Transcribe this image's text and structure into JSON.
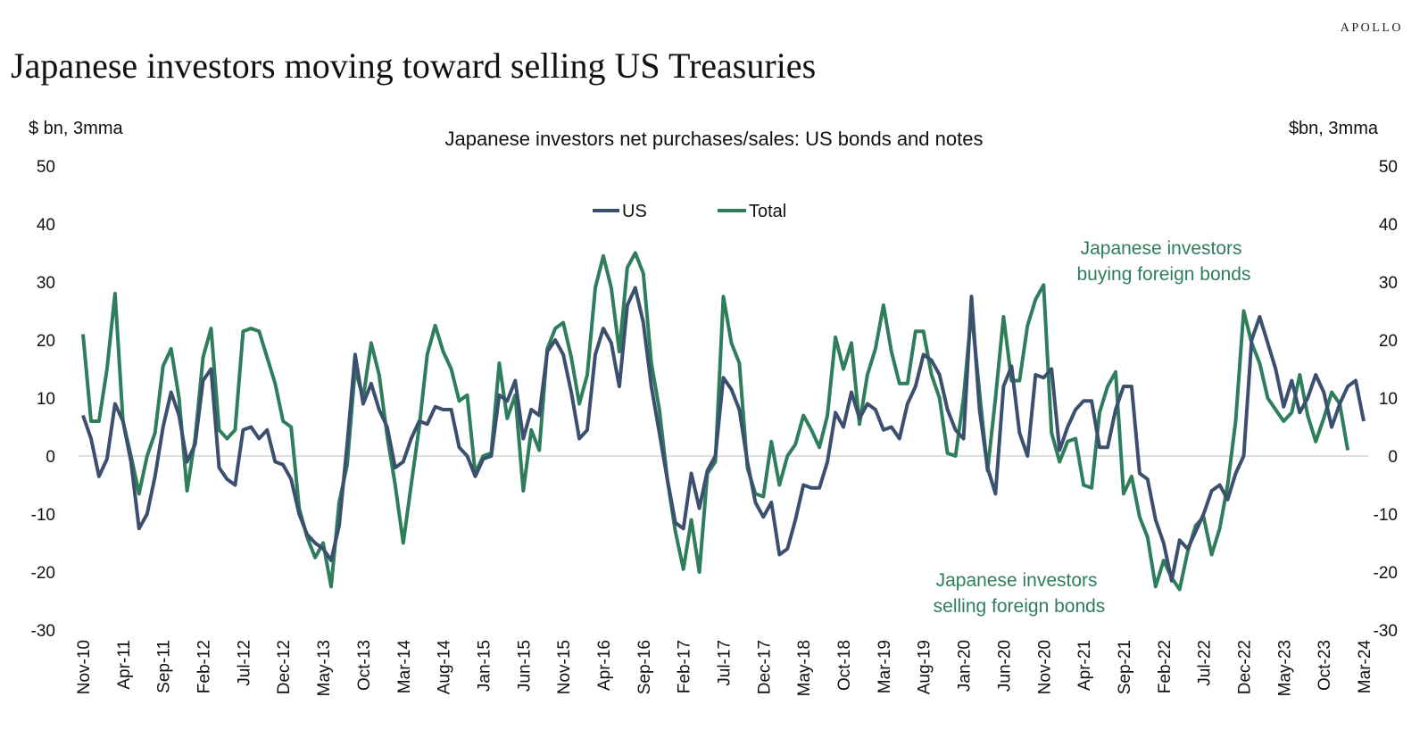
{
  "brand": "APOLLO",
  "title": "Japanese investors moving toward selling US Treasuries",
  "chart_data": {
    "type": "line",
    "subtitle": "Japanese investors net purchases/sales: US bonds and notes",
    "ylabel_left": "$ bn, 3mma",
    "ylabel_right": "$bn, 3mma",
    "ylim": [
      -30,
      50
    ],
    "yticks": [
      50,
      40,
      30,
      20,
      10,
      0,
      -10,
      -20,
      -30
    ],
    "x_labels": [
      "Nov-10",
      "Apr-11",
      "Sep-11",
      "Feb-12",
      "Jul-12",
      "Dec-12",
      "May-13",
      "Oct-13",
      "Mar-14",
      "Aug-14",
      "Jan-15",
      "Jun-15",
      "Nov-15",
      "Apr-16",
      "Sep-16",
      "Feb-17",
      "Jul-17",
      "Dec-17",
      "May-18",
      "Oct-18",
      "Mar-19",
      "Aug-19",
      "Jan-20",
      "Jun-20",
      "Nov-20",
      "Apr-21",
      "Sep-21",
      "Feb-22",
      "Jul-22",
      "Dec-22",
      "May-23",
      "Oct-23",
      "Mar-24"
    ],
    "x_start": "Nov-10",
    "x_end": "Apr-24",
    "legend": [
      "US",
      "Total"
    ],
    "legend_position": "top-center",
    "annotations": [
      {
        "lines": [
          "Japanese investors",
          "buying foreign bonds"
        ],
        "color": "#2e7d5b"
      },
      {
        "lines": [
          "Japanese investors",
          "selling foreign bonds"
        ],
        "color": "#2e7d5b"
      }
    ],
    "series": [
      {
        "name": "US",
        "color": "#3b4f6e",
        "values": [
          7,
          3,
          -3.5,
          -0.5,
          9,
          6,
          -1,
          -12.5,
          -10,
          -3.5,
          5,
          11,
          7,
          -1,
          2,
          13,
          15,
          -2,
          -4,
          -5,
          4.5,
          5,
          3,
          4.5,
          -1,
          -1.5,
          -4,
          -10,
          -13.5,
          -15,
          -16,
          -18,
          -12,
          2,
          17.5,
          9,
          12.5,
          8,
          5,
          -2,
          -1,
          3,
          6,
          5.5,
          8.5,
          8,
          8,
          1.5,
          0,
          -3.5,
          -0.5,
          0,
          10.5,
          9.5,
          13,
          3,
          8,
          7,
          18,
          20,
          17.5,
          11,
          3,
          4.5,
          17.5,
          22,
          19.5,
          12,
          26,
          29,
          23,
          12,
          4,
          -4,
          -11.5,
          -12.5,
          -3,
          -9,
          -2.5,
          0,
          13.5,
          11.5,
          8,
          -1,
          -8,
          -10.5,
          -8,
          -17,
          -16,
          -11,
          -5,
          -5.5,
          -5.5,
          -1,
          7.5,
          5,
          11,
          6.5,
          9,
          8,
          4.5,
          5,
          3,
          9,
          12,
          17.5,
          16.5,
          14,
          8,
          4.5,
          3,
          27.5,
          8,
          -2,
          -6.5,
          12,
          15.5,
          4,
          0,
          14,
          13.5,
          15,
          1,
          5,
          8,
          9.5,
          9.5,
          1.5,
          1.5,
          8,
          12,
          12,
          -3,
          -4,
          -11,
          -15,
          -21.5,
          -14.5,
          -16,
          -13,
          -10,
          -6,
          -5,
          -7.5,
          -3,
          0,
          20,
          24,
          19.5,
          15,
          8.5,
          13,
          7.5,
          10,
          14,
          11,
          5,
          9,
          12,
          13,
          6
        ]
      },
      {
        "name": "Total",
        "color": "#2e7d5b",
        "values": [
          21,
          6,
          6,
          15,
          28,
          6,
          0,
          -6.5,
          0,
          4,
          15.5,
          18.5,
          10,
          -6,
          3,
          17,
          22,
          4.5,
          3,
          4.5,
          21.5,
          22,
          21.5,
          17,
          12.5,
          6,
          5,
          -9,
          -14,
          -17.5,
          -15,
          -22.5,
          -8,
          -1.5,
          15,
          10,
          19.5,
          14,
          3.5,
          -5,
          -15,
          -5,
          5,
          17.5,
          22.5,
          18,
          15,
          9.5,
          10.5,
          -3,
          0,
          0.5,
          16,
          6.5,
          10.5,
          -6,
          4.5,
          1,
          18.5,
          22,
          23,
          17,
          9,
          14,
          29,
          34.5,
          29,
          18,
          32.5,
          35,
          31.5,
          16,
          8,
          -4,
          -13,
          -19.5,
          -11,
          -20,
          -3,
          -1,
          27.5,
          19.5,
          16,
          -2,
          -6.5,
          -7,
          2.5,
          -5,
          0,
          2,
          7,
          4.5,
          1.5,
          7,
          20.5,
          15,
          19.5,
          5.5,
          14,
          18.5,
          26,
          18,
          12.5,
          12.5,
          21.5,
          21.5,
          14,
          10,
          0.5,
          0,
          10,
          25,
          11,
          -2.5,
          10,
          24,
          13,
          13,
          22.5,
          27,
          29.5,
          4,
          -1,
          2.5,
          3,
          -5,
          -5.5,
          7.5,
          12,
          14.5,
          -6.5,
          -3.5,
          -10.5,
          -14,
          -22.5,
          -18,
          -21,
          -23,
          -16.5,
          -12,
          -10.5,
          -17,
          -12.5,
          -5,
          6,
          25,
          19.5,
          16,
          10,
          8,
          6,
          7.5,
          14,
          7,
          2.5,
          6.5,
          11,
          9,
          1
        ]
      }
    ]
  }
}
